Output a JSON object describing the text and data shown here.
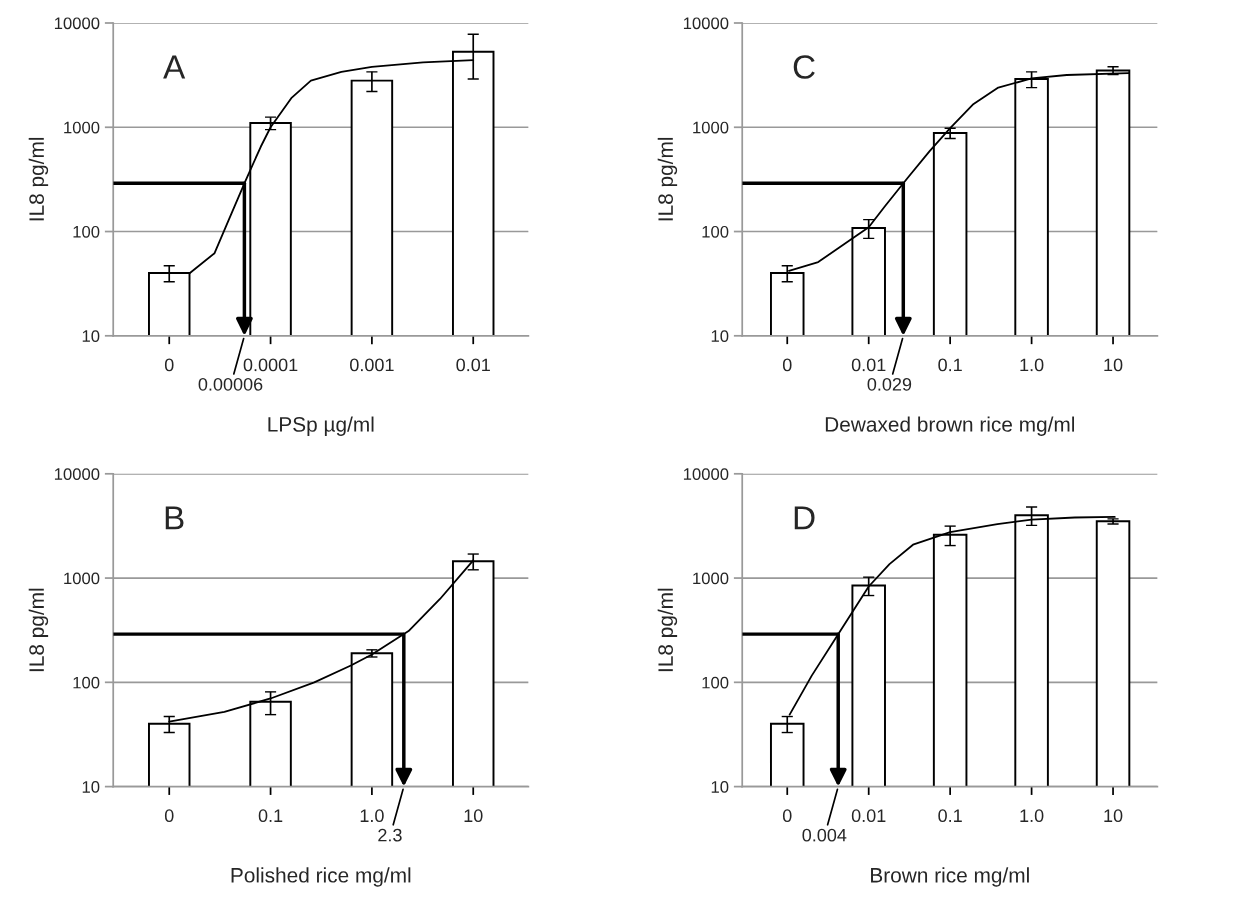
{
  "chart_data": [
    {
      "type": "bar",
      "title": "A",
      "xlabel": "LPSp µg/ml",
      "ylabel": "IL8 pg/ml",
      "log": "xy",
      "xlim": [
        2.8e-06,
        0.035
      ],
      "xticks": [
        {
          "value": 1e-05,
          "label": "0"
        },
        0.0001,
        0.001,
        0.01
      ],
      "ylim": [
        10,
        10000
      ],
      "yticks": [
        10,
        100,
        1000,
        10000
      ],
      "grid": "y",
      "x": [
        1e-05,
        0.0001,
        0.001,
        0.01
      ],
      "series": [
        {
          "color": "#ffffff",
          "values": [
            40,
            1100,
            2800,
            5300
          ],
          "errors": [
            [
              33,
              47
            ],
            [
              950,
              1250
            ],
            [
              2200,
              3400
            ],
            [
              2900,
              7800
            ]
          ]
        },
        {
          "type": "line",
          "color": "#000000",
          "x": [
            1.3e-05,
            1.6e-05,
            2.8e-05,
            4e-05,
            5.6e-05,
            8e-05,
            0.0001,
            0.00016,
            0.00025,
            0.0005,
            0.001,
            0.0032,
            0.01
          ],
          "values": [
            40,
            40,
            62,
            140,
            300,
            650,
            1000,
            1900,
            2800,
            3400,
            3800,
            4200,
            4400
          ]
        }
      ],
      "ref_lines": [
        {
          "axis": "y",
          "value": 290
        }
      ],
      "annotations": [
        "0.00006"
      ]
    },
    {
      "type": "bar",
      "title": "C",
      "xlabel": "Dewaxed brown rice mg/ml",
      "ylabel": "IL8 pg/ml",
      "log": "xy",
      "xlim": [
        0.00028,
        35
      ],
      "xticks": [
        {
          "value": 0.001,
          "label": "0"
        },
        0.01,
        0.1,
        {
          "value": 1,
          "label": "1.0"
        },
        10
      ],
      "ylim": [
        10,
        10000
      ],
      "yticks": [
        10,
        100,
        1000,
        10000
      ],
      "grid": "y",
      "x": [
        0.001,
        0.01,
        0.1,
        1,
        10
      ],
      "series": [
        {
          "color": "#ffffff",
          "values": [
            40,
            108,
            880,
            2900,
            3500
          ],
          "errors": [
            7,
            22,
            100,
            500,
            300
          ]
        },
        {
          "type": "line",
          "color": "#000000",
          "x": [
            0.00105,
            0.0024,
            0.0058,
            0.01,
            0.016,
            0.03,
            0.056,
            0.1,
            0.19,
            0.39,
            1,
            2.7,
            15.5
          ],
          "values": [
            42,
            51,
            82,
            110,
            177,
            326,
            590,
            980,
            1650,
            2400,
            2940,
            3170,
            3300
          ]
        }
      ],
      "ref_lines": [
        {
          "axis": "y",
          "value": 290
        }
      ],
      "annotations": [
        "0.029"
      ]
    },
    {
      "type": "bar",
      "title": "B",
      "xlabel": "Polished rice mg/ml",
      "ylabel": "IL8 pg/ml",
      "log": "xy",
      "xlim": [
        0.0028,
        35
      ],
      "xticks": [
        {
          "value": 0.01,
          "label": "0"
        },
        0.1,
        {
          "value": 1,
          "label": "1.0"
        },
        10
      ],
      "ylim": [
        10,
        10000
      ],
      "yticks": [
        10,
        100,
        1000,
        10000
      ],
      "grid": "y",
      "x": [
        0.01,
        0.1,
        1,
        10
      ],
      "series": [
        {
          "color": "#ffffff",
          "values": [
            40,
            65,
            190,
            1450
          ],
          "errors": [
            7,
            16,
            15,
            250
          ]
        },
        {
          "type": "line",
          "color": "#000000",
          "x": [
            0.01,
            0.035,
            0.1,
            0.27,
            0.62,
            1,
            2.3,
            4.7,
            10
          ],
          "values": [
            42,
            52,
            70,
            100,
            145,
            185,
            310,
            630,
            1480
          ]
        }
      ],
      "ref_lines": [
        {
          "axis": "y",
          "value": 290
        }
      ],
      "annotations": [
        "2.3"
      ]
    },
    {
      "type": "bar",
      "title": "D",
      "xlabel": "Brown rice mg/ml",
      "ylabel": "IL8 pg/ml",
      "log": "xy",
      "xlim": [
        0.00028,
        35
      ],
      "xticks": [
        {
          "value": 0.001,
          "label": "0"
        },
        0.01,
        0.1,
        {
          "value": 1,
          "label": "1.0"
        },
        10
      ],
      "ylim": [
        10,
        10000
      ],
      "yticks": [
        10,
        100,
        1000,
        10000
      ],
      "grid": "y",
      "x": [
        0.001,
        0.01,
        0.1,
        1,
        10
      ],
      "series": [
        {
          "color": "#ffffff",
          "values": [
            40,
            850,
            2600,
            4000,
            3500
          ],
          "errors": [
            7,
            170,
            550,
            800,
            200
          ]
        },
        {
          "type": "line",
          "color": "#000000",
          "x": [
            0.00107,
            0.002,
            0.0042,
            0.01,
            0.018,
            0.035,
            0.1,
            0.38,
            1,
            3.4,
            10.5
          ],
          "values": [
            49,
            116,
            288,
            830,
            1360,
            2090,
            2760,
            3290,
            3640,
            3810,
            3860
          ]
        }
      ],
      "ref_lines": [
        {
          "axis": "y",
          "value": 290
        }
      ],
      "annotations": [
        "0.004"
      ]
    }
  ]
}
